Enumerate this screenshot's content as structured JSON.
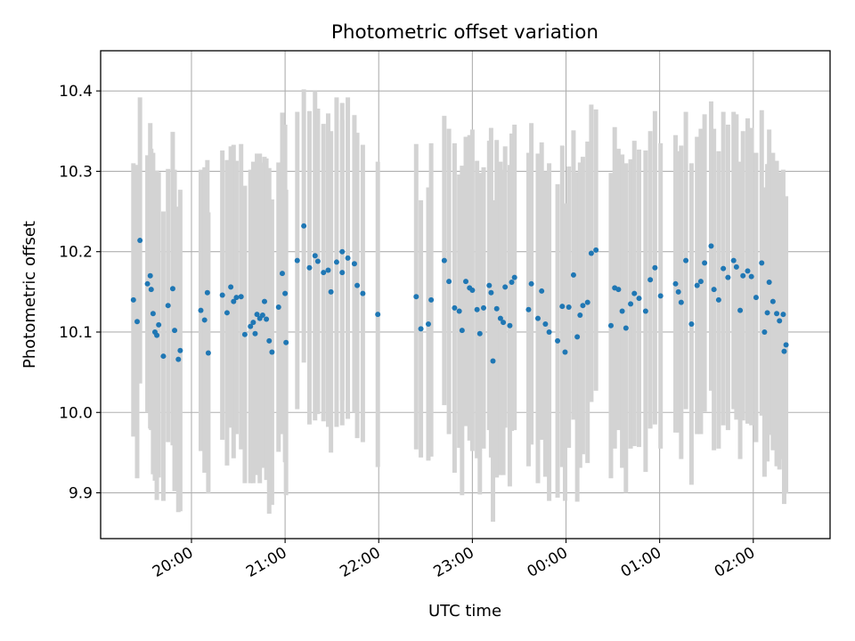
{
  "chart_data": {
    "type": "scatter",
    "title": "Photometric offset variation",
    "xlabel": "UTC time",
    "ylabel": "Photometric offset",
    "x_unit": "hours since 20:00 UTC (values past 24:00 wrap to next day)",
    "x_tick_values": [
      0,
      1,
      2,
      3,
      4,
      5,
      6
    ],
    "x_tick_labels": [
      "20:00",
      "21:00",
      "22:00",
      "23:00",
      "00:00",
      "01:00",
      "02:00"
    ],
    "xlim": [
      -0.97,
      6.82
    ],
    "ylim": [
      9.843,
      10.45
    ],
    "y_ticks": [
      9.9,
      10.0,
      10.1,
      10.2,
      10.3,
      10.4
    ],
    "y_tick_labels": [
      "9.9",
      "10.0",
      "10.1",
      "10.2",
      "10.3",
      "10.4"
    ],
    "grid": true,
    "marker_color": "#1f77b4",
    "errorbar_color": "#d3d3d3",
    "series": [
      {
        "points": [
          [
            -0.62,
            10.14,
            0.17
          ],
          [
            -0.58,
            10.113,
            0.195
          ],
          [
            -0.55,
            10.214,
            0.178
          ],
          [
            -0.47,
            10.16,
            0.16
          ],
          [
            -0.44,
            10.17,
            0.19
          ],
          [
            -0.43,
            10.153,
            0.175
          ],
          [
            -0.41,
            10.123,
            0.2
          ],
          [
            -0.39,
            10.1,
            0.185
          ],
          [
            -0.37,
            10.096,
            0.205
          ],
          [
            -0.35,
            10.109,
            0.19
          ],
          [
            -0.3,
            10.07,
            0.18
          ],
          [
            -0.25,
            10.133,
            0.17
          ],
          [
            -0.2,
            10.154,
            0.195
          ],
          [
            -0.18,
            10.102,
            0.2
          ],
          [
            -0.14,
            10.066,
            0.19
          ],
          [
            -0.12,
            10.077,
            0.2
          ],
          [
            0.1,
            10.127,
            0.175
          ],
          [
            0.14,
            10.115,
            0.19
          ],
          [
            0.17,
            10.149,
            0.165
          ],
          [
            0.18,
            10.074,
            0.175
          ],
          [
            0.33,
            10.146,
            0.18
          ],
          [
            0.38,
            10.124,
            0.19
          ],
          [
            0.42,
            10.156,
            0.175
          ],
          [
            0.45,
            10.138,
            0.195
          ],
          [
            0.48,
            10.143,
            0.17
          ],
          [
            0.53,
            10.144,
            0.19
          ],
          [
            0.57,
            10.097,
            0.185
          ],
          [
            0.63,
            10.107,
            0.195
          ],
          [
            0.66,
            10.112,
            0.2
          ],
          [
            0.68,
            10.098,
            0.17
          ],
          [
            0.7,
            10.122,
            0.2
          ],
          [
            0.73,
            10.117,
            0.205
          ],
          [
            0.76,
            10.121,
            0.19
          ],
          [
            0.78,
            10.138,
            0.18
          ],
          [
            0.8,
            10.116,
            0.2
          ],
          [
            0.83,
            10.089,
            0.215
          ],
          [
            0.86,
            10.075,
            0.19
          ],
          [
            0.93,
            10.131,
            0.18
          ],
          [
            0.97,
            10.173,
            0.2
          ],
          [
            1.01,
            10.087,
            0.19
          ],
          [
            1.0,
            10.148,
            0.21
          ],
          [
            1.13,
            10.189,
            0.185
          ],
          [
            1.2,
            10.232,
            0.17
          ],
          [
            1.26,
            10.18,
            0.195
          ],
          [
            1.32,
            10.195,
            0.205
          ],
          [
            1.35,
            10.188,
            0.19
          ],
          [
            1.41,
            10.174,
            0.185
          ],
          [
            1.46,
            10.177,
            0.195
          ],
          [
            1.49,
            10.15,
            0.2
          ],
          [
            1.55,
            10.187,
            0.205
          ],
          [
            1.61,
            10.2,
            0.185
          ],
          [
            1.61,
            10.174,
            0.19
          ],
          [
            1.67,
            10.192,
            0.2
          ],
          [
            1.74,
            10.185,
            0.185
          ],
          [
            1.77,
            10.158,
            0.19
          ],
          [
            1.83,
            10.148,
            0.185
          ],
          [
            1.99,
            10.122,
            0.19
          ],
          [
            2.4,
            10.144,
            0.19
          ],
          [
            2.45,
            10.104,
            0.16
          ],
          [
            2.53,
            10.11,
            0.17
          ],
          [
            2.56,
            10.14,
            0.195
          ],
          [
            2.7,
            10.189,
            0.18
          ],
          [
            2.75,
            10.163,
            0.19
          ],
          [
            2.81,
            10.13,
            0.205
          ],
          [
            2.86,
            10.126,
            0.17
          ],
          [
            2.89,
            10.102,
            0.205
          ],
          [
            2.93,
            10.163,
            0.18
          ],
          [
            2.97,
            10.155,
            0.19
          ],
          [
            3.0,
            10.152,
            0.2
          ],
          [
            3.05,
            10.128,
            0.185
          ],
          [
            3.08,
            10.098,
            0.2
          ],
          [
            3.12,
            10.13,
            0.175
          ],
          [
            3.18,
            10.158,
            0.18
          ],
          [
            3.2,
            10.149,
            0.205
          ],
          [
            3.22,
            10.064,
            0.2
          ],
          [
            3.26,
            10.129,
            0.21
          ],
          [
            3.3,
            10.117,
            0.195
          ],
          [
            3.33,
            10.112,
            0.19
          ],
          [
            3.35,
            10.156,
            0.175
          ],
          [
            3.4,
            10.108,
            0.2
          ],
          [
            3.42,
            10.162,
            0.185
          ],
          [
            3.45,
            10.168,
            0.19
          ],
          [
            3.6,
            10.128,
            0.195
          ],
          [
            3.63,
            10.16,
            0.2
          ],
          [
            3.7,
            10.117,
            0.205
          ],
          [
            3.74,
            10.151,
            0.185
          ],
          [
            3.78,
            10.11,
            0.19
          ],
          [
            3.82,
            10.1,
            0.21
          ],
          [
            3.91,
            10.089,
            0.195
          ],
          [
            3.96,
            10.132,
            0.2
          ],
          [
            3.99,
            10.075,
            0.185
          ],
          [
            4.03,
            10.131,
            0.175
          ],
          [
            4.08,
            10.171,
            0.18
          ],
          [
            4.12,
            10.094,
            0.205
          ],
          [
            4.15,
            10.121,
            0.19
          ],
          [
            4.18,
            10.133,
            0.185
          ],
          [
            4.23,
            10.137,
            0.2
          ],
          [
            4.27,
            10.198,
            0.185
          ],
          [
            4.32,
            10.202,
            0.175
          ],
          [
            4.48,
            10.108,
            0.19
          ],
          [
            4.52,
            10.155,
            0.2
          ],
          [
            4.56,
            10.153,
            0.175
          ],
          [
            4.6,
            10.126,
            0.195
          ],
          [
            4.64,
            10.105,
            0.205
          ],
          [
            4.69,
            10.135,
            0.18
          ],
          [
            4.73,
            10.148,
            0.19
          ],
          [
            4.78,
            10.142,
            0.185
          ],
          [
            4.85,
            10.126,
            0.2
          ],
          [
            4.9,
            10.165,
            0.185
          ],
          [
            4.95,
            10.18,
            0.195
          ],
          [
            5.01,
            10.145,
            0.19
          ],
          [
            5.17,
            10.16,
            0.185
          ],
          [
            5.2,
            10.15,
            0.175
          ],
          [
            5.23,
            10.137,
            0.195
          ],
          [
            5.28,
            10.189,
            0.185
          ],
          [
            5.34,
            10.11,
            0.2
          ],
          [
            5.4,
            10.158,
            0.185
          ],
          [
            5.44,
            10.163,
            0.19
          ],
          [
            5.48,
            10.186,
            0.185
          ],
          [
            5.55,
            10.207,
            0.18
          ],
          [
            5.58,
            10.153,
            0.2
          ],
          [
            5.63,
            10.14,
            0.185
          ],
          [
            5.68,
            10.179,
            0.195
          ],
          [
            5.73,
            10.168,
            0.19
          ],
          [
            5.79,
            10.189,
            0.185
          ],
          [
            5.82,
            10.181,
            0.19
          ],
          [
            5.86,
            10.127,
            0.185
          ],
          [
            5.89,
            10.17,
            0.18
          ],
          [
            5.94,
            10.176,
            0.19
          ],
          [
            5.98,
            10.169,
            0.185
          ],
          [
            6.03,
            10.143,
            0.18
          ],
          [
            6.09,
            10.186,
            0.19
          ],
          [
            6.12,
            10.1,
            0.18
          ],
          [
            6.15,
            10.124,
            0.185
          ],
          [
            6.17,
            10.162,
            0.19
          ],
          [
            6.21,
            10.138,
            0.185
          ],
          [
            6.25,
            10.123,
            0.19
          ],
          [
            6.28,
            10.114,
            0.185
          ],
          [
            6.32,
            10.122,
            0.18
          ],
          [
            6.33,
            10.076,
            0.19
          ],
          [
            6.35,
            10.084,
            0.185
          ]
        ]
      }
    ]
  }
}
